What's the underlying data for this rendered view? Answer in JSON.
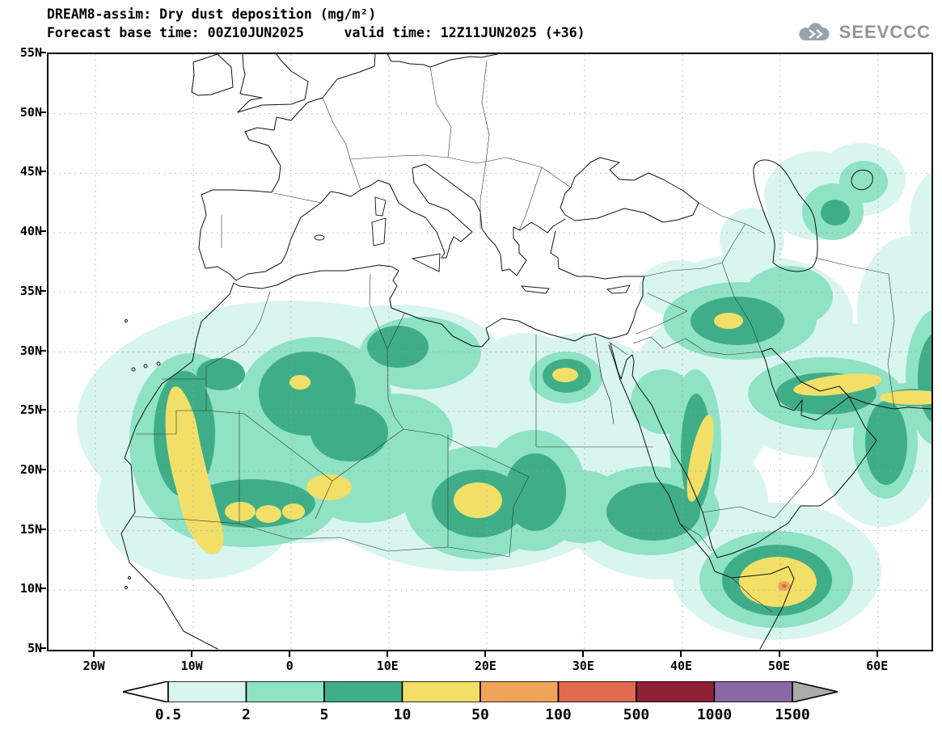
{
  "header": {
    "title_line1": "DREAM8-assim: Dry dust deposition (mg/m²)",
    "title_line2": "Forecast base time: 00Z10JUN2025     valid time: 12Z11JUN2025 (+36)",
    "logo_text": "SEEVCCC"
  },
  "map": {
    "y_ticks": [
      "55N",
      "50N",
      "45N",
      "40N",
      "35N",
      "30N",
      "25N",
      "20N",
      "15N",
      "10N",
      "5N"
    ],
    "x_ticks": [
      "20W",
      "10W",
      "0",
      "10E",
      "20E",
      "30E",
      "40E",
      "50E",
      "60E"
    ]
  },
  "chart_data": {
    "type": "heatmap",
    "subtype": "filled-contour-geographic-map",
    "title": "DREAM8-assim: Dry dust deposition (mg/m²)",
    "model": "DREAM8-assim",
    "variable": "Dry dust deposition",
    "units": "mg/m²",
    "forecast_base_time": "00Z10JUN2025",
    "valid_time": "12Z11JUN2025",
    "forecast_offset": "+36",
    "lon_range": [
      -25,
      65
    ],
    "lat_range": [
      5,
      55
    ],
    "lon_ticks": [
      -20,
      -10,
      0,
      10,
      20,
      30,
      40,
      50,
      60
    ],
    "lat_ticks": [
      55,
      50,
      45,
      40,
      35,
      30,
      25,
      20,
      15,
      10,
      5
    ],
    "grid": "dotted",
    "legend_position": "bottom",
    "levels": [
      0.5,
      2,
      5,
      10,
      50,
      100,
      500,
      1000,
      1500
    ],
    "legend_labels": [
      "0.5",
      "2",
      "5",
      "10",
      "50",
      "100",
      "500",
      "1000",
      "1500"
    ],
    "palette": [
      "#ffffff",
      "#d9f5f0",
      "#8fe2c4",
      "#3fae88",
      "#f2df68",
      "#f0a45a",
      "#e0694e",
      "#8e2133",
      "#8a68a8",
      "#ababab"
    ],
    "hotspots": [
      {
        "area": "Western Sahara / Mauritania Atlantic coast",
        "lon": -15,
        "lat": 22,
        "peak_level_mg_m2": "10-50"
      },
      {
        "area": "Mali band (8W-4W, ~17N)",
        "lon": -6,
        "lat": 17,
        "peak_level_mg_m2": "10-50"
      },
      {
        "area": "Southern Algeria / Adrar (1E-4E, ~18.5N)",
        "lon": 2.5,
        "lat": 18.5,
        "peak_level_mg_m2": "10-50"
      },
      {
        "area": "SE Libya / NW Chad (~17.5E, 18N)",
        "lon": 17.5,
        "lat": 18,
        "peak_level_mg_m2": "10-50"
      },
      {
        "area": "NW Egypt Mediterranean coast (~27.5E, 31N)",
        "lon": 27.5,
        "lat": 31,
        "peak_level_mg_m2": "10-50"
      },
      {
        "area": "Saudi Red Sea coastal strip (39E-41E, 19N-25N)",
        "lon": 40,
        "lat": 22,
        "peak_level_mg_m2": "10-50"
      },
      {
        "area": "Northern Saudi / Iraq (~40E-44E, 30N-33N)",
        "lon": 42,
        "lat": 32,
        "peak_level_mg_m2": "10-50"
      },
      {
        "area": "Iranian Persian Gulf coast (50E-57E, 26N-28N)",
        "lon": 53,
        "lat": 27,
        "peak_level_mg_m2": "10-50"
      },
      {
        "area": "Horn of Africa / Somalia (44E-50E, 6N-11N)",
        "lon": 47,
        "lat": 9,
        "peak_level_mg_m2": "50-100"
      },
      {
        "area": "Makran coast (58E-64E, ~25.5N)",
        "lon": 61,
        "lat": 25.5,
        "peak_level_mg_m2": "10-50"
      },
      {
        "area": "Broad Sahara / Middle East background",
        "lon": 10,
        "lat": 22,
        "peak_level_mg_m2": "0.5-10"
      }
    ]
  }
}
